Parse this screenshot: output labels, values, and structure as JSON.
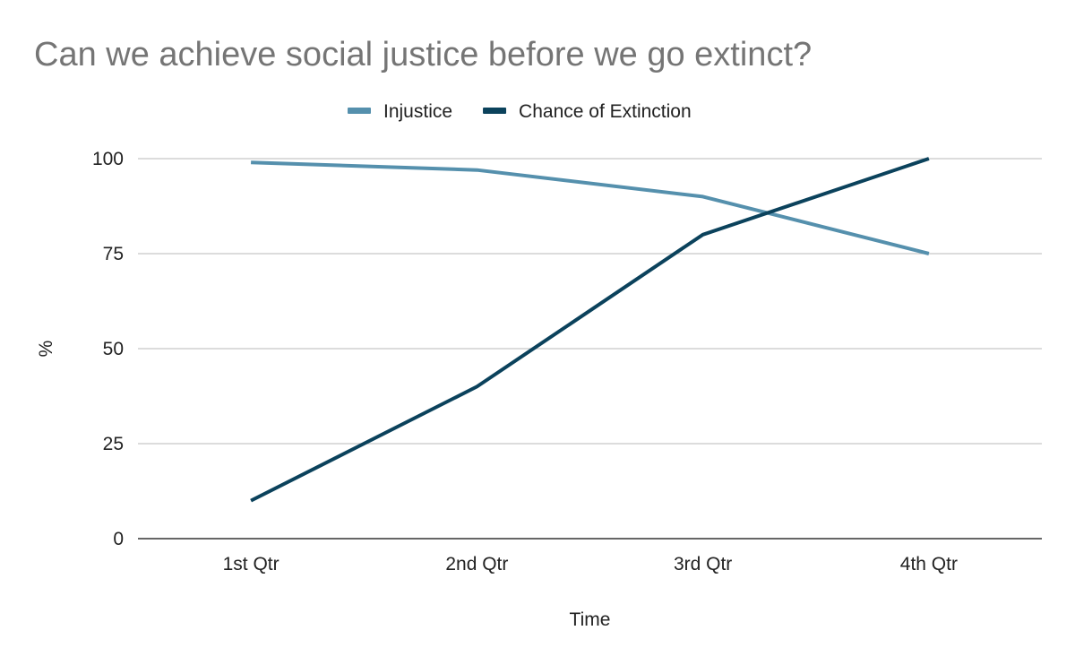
{
  "chart_data": {
    "type": "line",
    "title": "Can we achieve social justice before we go extinct?",
    "xlabel": "Time",
    "ylabel": "%",
    "categories": [
      "1st Qtr",
      "2nd Qtr",
      "3rd Qtr",
      "4th Qtr"
    ],
    "ylim": [
      0,
      100
    ],
    "yticks": [
      0,
      25,
      50,
      75,
      100
    ],
    "grid": true,
    "legend": "top-center",
    "series": [
      {
        "name": "Injustice",
        "color": "#5590ad",
        "values": [
          99,
          97,
          90,
          75
        ]
      },
      {
        "name": "Chance of Extinction",
        "color": "#0b425c",
        "values": [
          10,
          40,
          80,
          100
        ]
      }
    ]
  }
}
